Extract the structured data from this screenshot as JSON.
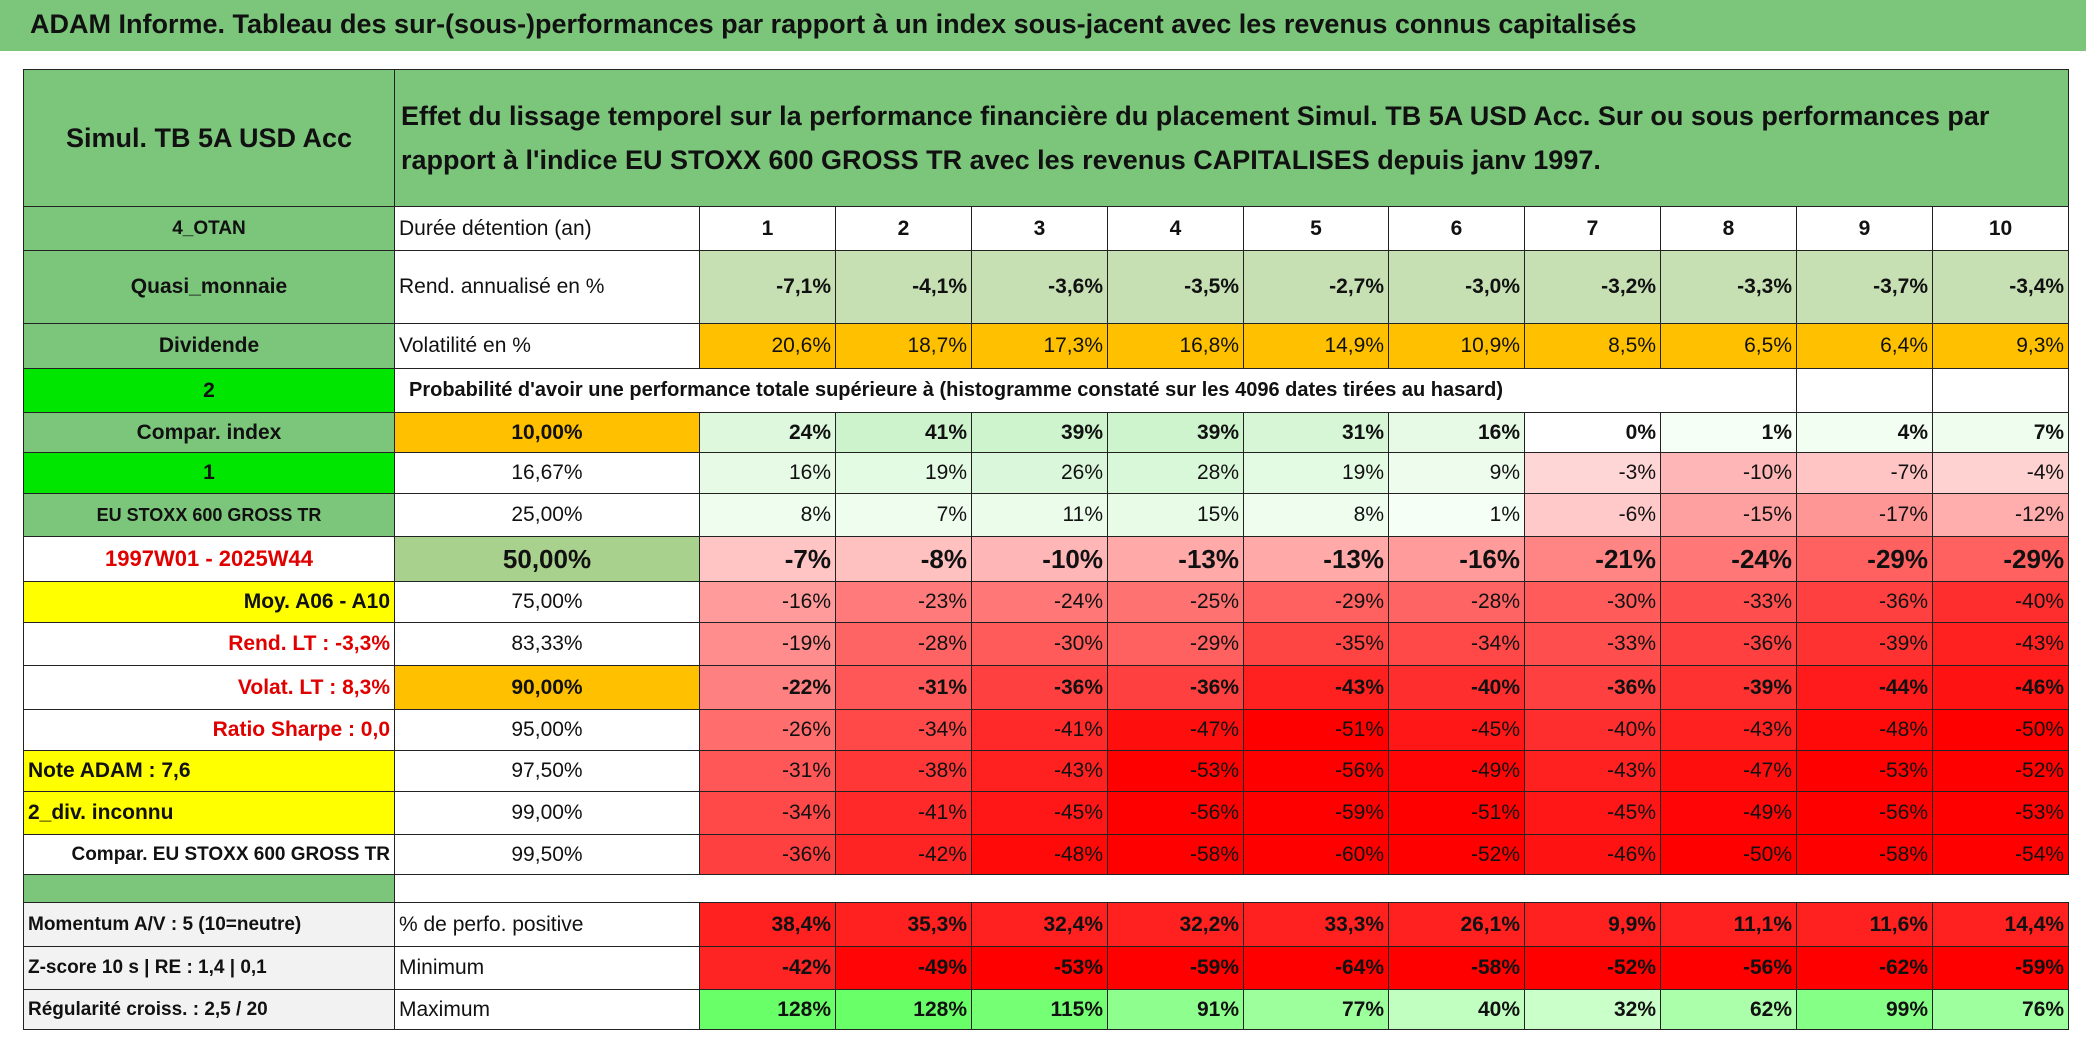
{
  "title": "ADAM Informe. Tableau des sur-(sous-)performances par rapport à un index sous-jacent avec les revenus connus capitalisés",
  "header": {
    "left": "Simul. TB 5A USD Acc",
    "text": "Effet du lissage temporel sur la performance financière du placement Simul. TB 5A USD Acc. Sur ou sous performances par rapport à l'indice EU STOXX 600 GROSS TR avec les revenus CAPITALISES depuis janv 1997."
  },
  "rows": [
    {
      "label": "4_OTAN",
      "sub": "Durée détention (an)",
      "cells": [
        "1",
        "2",
        "3",
        "4",
        "5",
        "6",
        "7",
        "8",
        "9",
        "10"
      ]
    },
    {
      "label": "Quasi_monnaie",
      "sub": "Rend. annualisé en %",
      "cells": [
        "-7,1%",
        "-4,1%",
        "-3,6%",
        "-3,5%",
        "-2,7%",
        "-3,0%",
        "-3,2%",
        "-3,3%",
        "-3,7%",
        "-3,4%"
      ]
    },
    {
      "label": "Dividende",
      "sub": "Volatilité en %",
      "cells": [
        "20,6%",
        "18,7%",
        "17,3%",
        "16,8%",
        "14,9%",
        "10,9%",
        "8,5%",
        "6,5%",
        "6,4%",
        "9,3%"
      ]
    },
    {
      "label": "2",
      "sub": "Probabilité d'avoir une performance totale supérieure à (histogramme constaté sur les 4096 dates tirées au hasard)",
      "cells": []
    },
    {
      "label": "Compar. index",
      "sub": "10,00%",
      "cells": [
        "24%",
        "41%",
        "39%",
        "39%",
        "31%",
        "16%",
        "0%",
        "1%",
        "4%",
        "7%"
      ]
    },
    {
      "label": "1",
      "sub": "16,67%",
      "cells": [
        "16%",
        "19%",
        "26%",
        "28%",
        "19%",
        "9%",
        "-3%",
        "-10%",
        "-7%",
        "-4%"
      ]
    },
    {
      "label": "EU STOXX 600 GROSS TR",
      "sub": "25,00%",
      "cells": [
        "8%",
        "7%",
        "11%",
        "15%",
        "8%",
        "1%",
        "-6%",
        "-15%",
        "-17%",
        "-12%"
      ]
    },
    {
      "label": "1997W01 - 2025W44",
      "sub": "50,00%",
      "cells": [
        "-7%",
        "-8%",
        "-10%",
        "-13%",
        "-13%",
        "-16%",
        "-21%",
        "-24%",
        "-29%",
        "-29%"
      ]
    },
    {
      "label": "Moy. A06 - A10",
      "sub": "75,00%",
      "cells": [
        "-16%",
        "-23%",
        "-24%",
        "-25%",
        "-29%",
        "-28%",
        "-30%",
        "-33%",
        "-36%",
        "-40%"
      ]
    },
    {
      "label": "Rend. LT :   -3,3%",
      "sub": "83,33%",
      "cells": [
        "-19%",
        "-28%",
        "-30%",
        "-29%",
        "-35%",
        "-34%",
        "-33%",
        "-36%",
        "-39%",
        "-43%"
      ]
    },
    {
      "label": "Volat. LT :   8,3%",
      "sub": "90,00%",
      "cells": [
        "-22%",
        "-31%",
        "-36%",
        "-36%",
        "-43%",
        "-40%",
        "-36%",
        "-39%",
        "-44%",
        "-46%"
      ]
    },
    {
      "label": "Ratio Sharpe :    0,0",
      "sub": "95,00%",
      "cells": [
        "-26%",
        "-34%",
        "-41%",
        "-47%",
        "-51%",
        "-45%",
        "-40%",
        "-43%",
        "-48%",
        "-50%"
      ]
    },
    {
      "label": "Note ADAM : 7,6",
      "sub": "97,50%",
      "cells": [
        "-31%",
        "-38%",
        "-43%",
        "-53%",
        "-56%",
        "-49%",
        "-43%",
        "-47%",
        "-53%",
        "-52%"
      ]
    },
    {
      "label": "2_div. inconnu",
      "sub": "99,00%",
      "cells": [
        "-34%",
        "-41%",
        "-45%",
        "-56%",
        "-59%",
        "-51%",
        "-45%",
        "-49%",
        "-56%",
        "-53%"
      ]
    },
    {
      "label": "Compar. EU STOXX 600 GROSS TR",
      "sub": "99,50%",
      "cells": [
        "-36%",
        "-42%",
        "-48%",
        "-58%",
        "-60%",
        "-52%",
        "-46%",
        "-50%",
        "-58%",
        "-54%"
      ]
    },
    {
      "label": "Momentum A/V : 5 (10=neutre)",
      "sub": "% de perfo. positive",
      "cells": [
        "38,4%",
        "35,3%",
        "32,4%",
        "32,2%",
        "33,3%",
        "26,1%",
        "9,9%",
        "11,1%",
        "11,6%",
        "14,4%"
      ]
    },
    {
      "label": "Z-score 10 s | RE : 1,4 | 0,1",
      "sub": "Minimum",
      "cells": [
        "-42%",
        "-49%",
        "-53%",
        "-59%",
        "-64%",
        "-58%",
        "-52%",
        "-56%",
        "-62%",
        "-59%"
      ]
    },
    {
      "label": "Régularité croiss. : 2,5 / 20",
      "sub": "Maximum",
      "cells": [
        "128%",
        "128%",
        "115%",
        "91%",
        "77%",
        "40%",
        "32%",
        "62%",
        "99%",
        "76%"
      ]
    }
  ]
}
